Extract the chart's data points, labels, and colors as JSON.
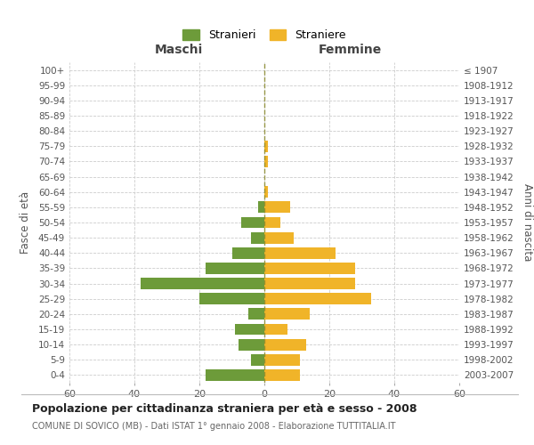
{
  "age_groups": [
    "0-4",
    "5-9",
    "10-14",
    "15-19",
    "20-24",
    "25-29",
    "30-34",
    "35-39",
    "40-44",
    "45-49",
    "50-54",
    "55-59",
    "60-64",
    "65-69",
    "70-74",
    "75-79",
    "80-84",
    "85-89",
    "90-94",
    "95-99",
    "100+"
  ],
  "birth_years": [
    "2003-2007",
    "1998-2002",
    "1993-1997",
    "1988-1992",
    "1983-1987",
    "1978-1982",
    "1973-1977",
    "1968-1972",
    "1963-1967",
    "1958-1962",
    "1953-1957",
    "1948-1952",
    "1943-1947",
    "1938-1942",
    "1933-1937",
    "1928-1932",
    "1923-1927",
    "1918-1922",
    "1913-1917",
    "1908-1912",
    "≤ 1907"
  ],
  "males": [
    18,
    4,
    8,
    9,
    5,
    20,
    38,
    18,
    10,
    4,
    7,
    2,
    0,
    0,
    0,
    0,
    0,
    0,
    0,
    0,
    0
  ],
  "females": [
    11,
    11,
    13,
    7,
    14,
    33,
    28,
    28,
    22,
    9,
    5,
    8,
    1,
    0,
    1,
    1,
    0,
    0,
    0,
    0,
    0
  ],
  "male_color": "#6d9b3a",
  "female_color": "#f0b429",
  "bar_height": 0.75,
  "xlim": 60,
  "xlabel_left": "Maschi",
  "xlabel_right": "Femmine",
  "ylabel_left": "Fasce di età",
  "ylabel_right": "Anni di nascita",
  "legend_male": "Stranieri",
  "legend_female": "Straniere",
  "title": "Popolazione per cittadinanza straniera per età e sesso - 2008",
  "subtitle": "COMUNE DI SOVICO (MB) - Dati ISTAT 1° gennaio 2008 - Elaborazione TUTTITALIA.IT",
  "vline_color": "#8a8a2e",
  "background_color": "#ffffff",
  "grid_color": "#cccccc",
  "xticks": [
    -60,
    -40,
    -20,
    0,
    20,
    40,
    60
  ]
}
